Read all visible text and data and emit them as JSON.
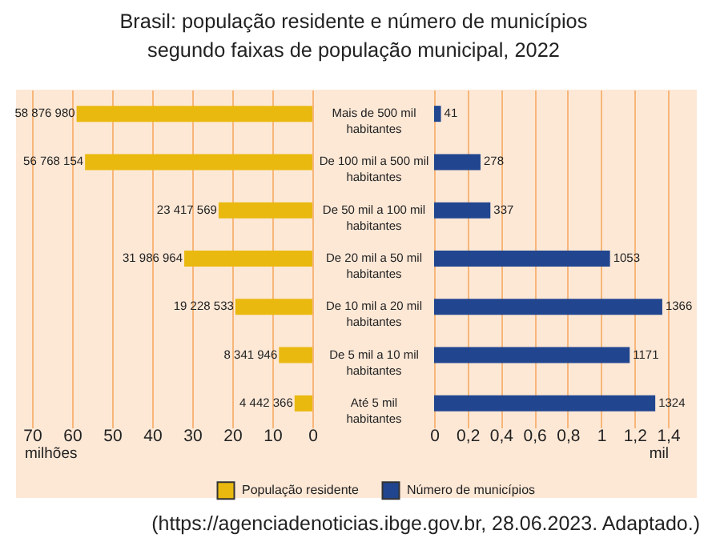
{
  "chart_data": [
    {
      "type": "bar",
      "orientation": "horizontal",
      "title": "Brasil: população residente e número de municípios segundo faixas de população municipal, 2022",
      "categories": [
        "Mais de 500 mil habitantes",
        "De 100 mil a 500 mil habitantes",
        "De 50 mil a 100 mil habitantes",
        "De 20 mil a 50 mil habitantes",
        "De 10 mil a 20 mil habitantes",
        "De 5 mil a 10 mil habitantes",
        "Até 5 mil habitantes"
      ],
      "series": [
        {
          "name": "População residente",
          "color": "#e9b90f",
          "values": [
            58.87698,
            56.768154,
            23.417569,
            31.986964,
            19.228533,
            8.341946,
            4.442366
          ]
        }
      ],
      "xlim": [
        70,
        0
      ],
      "xticks": [
        70,
        60,
        50,
        40,
        30,
        20,
        10,
        0
      ],
      "xlabel": "milhões",
      "grid": "x",
      "legend": "bottom",
      "tick_labels": "x",
      "annotations": [
        {
          "text": "58 876 980",
          "x": 58.87698,
          "y": "Mais de 500 mil habitantes"
        },
        {
          "text": "56 768 154",
          "x": 56.768154,
          "y": "De 100 mil a 500 mil habitantes"
        },
        {
          "text": "23 417 569",
          "x": 23.417569,
          "y": "De 50 mil a 100 mil habitantes"
        },
        {
          "text": "31 986 964",
          "x": 31.986964,
          "y": "De 20 mil a 50 mil habitantes"
        },
        {
          "text": "19 228 533",
          "x": 19.228533,
          "y": "De 10 mil a 20 mil habitantes"
        },
        {
          "text": "8 341 946",
          "x": 8.341946,
          "y": "De 5 mil a 10 mil habitantes"
        },
        {
          "text": "4 442 366",
          "x": 4.442366,
          "y": "Até 5 mil habitantes"
        },
        "(https://agenciadenoticias.ibge.gov.br, 28.06.2023. Adaptado.)"
      ]
    },
    {
      "type": "bar",
      "orientation": "horizontal",
      "categories": [
        "Mais de 500 mil habitantes",
        "De 100 mil a 500 mil habitantes",
        "De 50 mil a 100 mil habitantes",
        "De 20 mil a 50 mil habitantes",
        "De 10 mil a 20 mil habitantes",
        "De 5 mil a 10 mil habitantes",
        "Até 5 mil habitantes"
      ],
      "series": [
        {
          "name": "Número de municípios",
          "color": "#21468f",
          "values": [
            0.041,
            0.278,
            0.337,
            1.053,
            1.366,
            1.171,
            1.324
          ]
        }
      ],
      "xlim": [
        0,
        1.4
      ],
      "xticks": [
        0,
        {
          "value": 0.2,
          "label": "0,2"
        },
        {
          "value": 0.4,
          "label": "0,4"
        },
        {
          "value": 0.6,
          "label": "0,6"
        },
        {
          "value": 0.8,
          "label": "0,8"
        },
        1,
        {
          "value": 1.2,
          "label": "1,2"
        },
        {
          "value": 1.4,
          "label": "1,4"
        }
      ],
      "xlabel": "mil",
      "grid": "x",
      "legend": "bottom",
      "annotations": [
        {
          "text": "41",
          "x": 0.041,
          "y": "Mais de 500 mil habitantes"
        },
        {
          "text": "278",
          "x": 0.278,
          "y": "De 100 mil a 500 mil habitantes"
        },
        {
          "text": "337",
          "x": 0.337,
          "y": "De 50 mil a 100 mil habitantes"
        },
        {
          "text": "1053",
          "x": 1.053,
          "y": "De 20 mil a 50 mil habitantes"
        },
        {
          "text": "1366",
          "x": 1.366,
          "y": "De 10 mil a 20 mil habitantes"
        },
        {
          "text": "1171",
          "x": 1.171,
          "y": "De 5 mil a 10 mil habitantes"
        },
        {
          "text": "1324",
          "x": 1.324,
          "y": "Até 5 mil habitantes"
        }
      ]
    }
  ]
}
